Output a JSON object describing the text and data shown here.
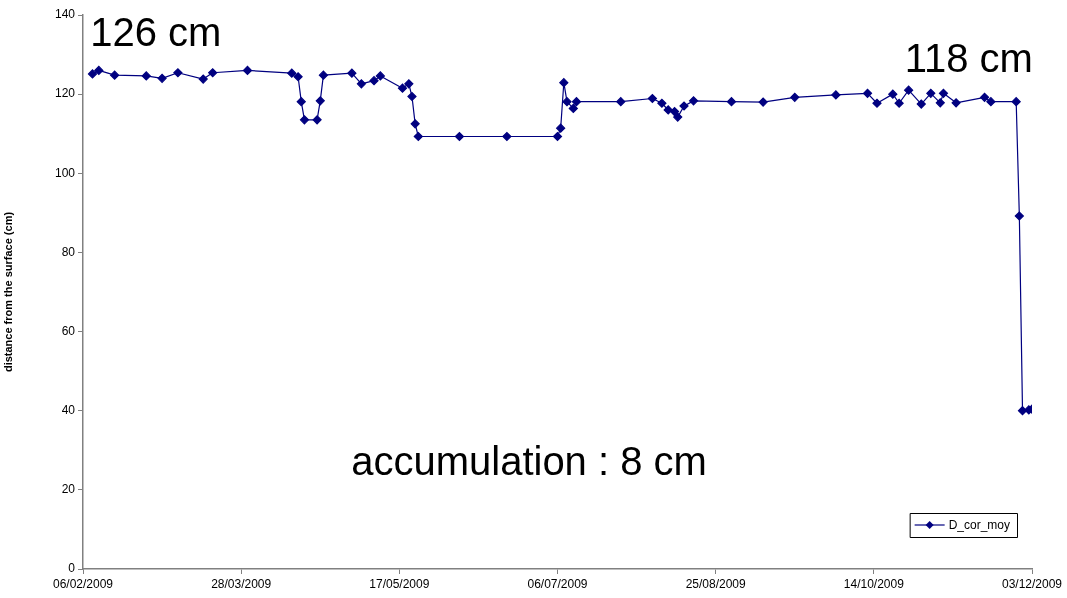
{
  "chart_data": {
    "type": "line",
    "ylabel": "distance from the surface (cm)",
    "x": [
      "2009-02-09",
      "2009-02-11",
      "2009-02-16",
      "2009-02-26",
      "2009-03-03",
      "2009-03-08",
      "2009-03-16",
      "2009-03-19",
      "2009-03-30",
      "2009-04-13",
      "2009-04-15",
      "2009-04-16",
      "2009-04-17",
      "2009-04-21",
      "2009-04-22",
      "2009-04-23",
      "2009-05-02",
      "2009-05-05",
      "2009-05-09",
      "2009-05-11",
      "2009-05-18",
      "2009-05-20",
      "2009-05-21",
      "2009-05-22",
      "2009-05-23",
      "2009-06-05",
      "2009-06-20",
      "2009-07-06",
      "2009-07-07",
      "2009-07-08",
      "2009-07-09",
      "2009-07-11",
      "2009-07-12",
      "2009-07-26",
      "2009-08-05",
      "2009-08-08",
      "2009-08-10",
      "2009-08-12",
      "2009-08-13",
      "2009-08-15",
      "2009-08-18",
      "2009-08-30",
      "2009-09-09",
      "2009-09-19",
      "2009-10-02",
      "2009-10-12",
      "2009-10-15",
      "2009-10-20",
      "2009-10-22",
      "2009-10-25",
      "2009-10-29",
      "2009-11-01",
      "2009-11-04",
      "2009-11-05",
      "2009-11-09",
      "2009-11-18",
      "2009-11-20",
      "2009-11-28",
      "2009-11-29",
      "2009-11-30",
      "2009-12-02",
      "2009-12-03"
    ],
    "series": [
      {
        "name": "D_cor_moy",
        "color": "#000080",
        "values": [
          125.1,
          126.0,
          124.8,
          124.6,
          124.0,
          125.4,
          123.8,
          125.4,
          126.0,
          125.3,
          124.4,
          118.1,
          113.5,
          113.5,
          118.3,
          124.8,
          125.3,
          122.6,
          123.4,
          124.6,
          121.5,
          122.6,
          119.4,
          112.5,
          109.3,
          109.3,
          109.3,
          109.3,
          111.4,
          122.9,
          118.1,
          116.4,
          118.1,
          118.1,
          118.9,
          117.7,
          116.0,
          115.6,
          114.2,
          117.0,
          118.3,
          118.1,
          118.0,
          119.2,
          119.8,
          120.2,
          117.7,
          120.0,
          117.7,
          121.0,
          117.5,
          120.2,
          117.8,
          120.2,
          117.8,
          119.2,
          118.1,
          118.1,
          89.2,
          40.0,
          40.2,
          40.4
        ]
      }
    ],
    "xlim": [
      "2009-02-06",
      "2009-12-03"
    ],
    "xticks": [
      {
        "value": "2009-02-06",
        "label": "06/02/2009"
      },
      {
        "value": "2009-03-28",
        "label": "28/03/2009"
      },
      {
        "value": "2009-05-17",
        "label": "17/05/2009"
      },
      {
        "value": "2009-07-06",
        "label": "06/07/2009"
      },
      {
        "value": "2009-08-25",
        "label": "25/08/2009"
      },
      {
        "value": "2009-10-14",
        "label": "14/10/2009"
      },
      {
        "value": "2009-12-03",
        "label": "03/12/2009"
      }
    ],
    "ylim": [
      0,
      140
    ],
    "yticks": [
      0,
      20,
      40,
      60,
      80,
      100,
      120,
      140
    ],
    "grid": false,
    "legend": "bottom right",
    "marker": "diamond",
    "line_style": "solid",
    "annotations": [
      {
        "text": "126 cm",
        "x": "2009-03-01",
        "y": 125
      },
      {
        "text": "118 cm",
        "x": "2009-11-13",
        "y": 118.5
      },
      "accumulation : 8 cm"
    ]
  }
}
